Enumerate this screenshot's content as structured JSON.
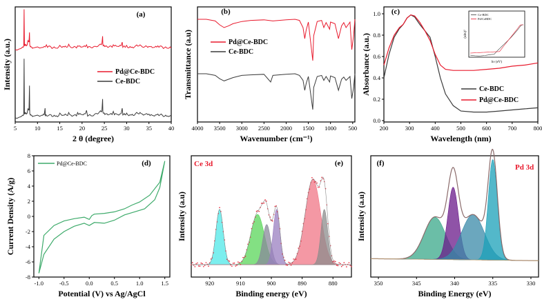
{
  "chart_data": [
    {
      "panel": "(a)",
      "type": "line",
      "xlabel": "2 θ (degree)",
      "ylabel": "Intensity (a.u.)",
      "xlim": [
        5,
        40
      ],
      "xticks": [
        "5",
        "10",
        "15",
        "20",
        "25",
        "30",
        "35",
        "40"
      ],
      "series": [
        {
          "name": "Pd@Ce-BDC",
          "color": "#e8192c",
          "x": [
            5,
            6.7,
            7.0,
            7.3,
            7.8,
            8.2,
            8.5,
            9,
            11,
            12,
            13,
            14,
            15,
            16,
            17,
            18,
            19,
            20,
            21,
            22,
            23,
            24,
            24.6,
            24.9,
            25.2,
            26,
            27,
            28,
            29,
            29.6,
            30,
            31,
            32,
            33,
            34,
            35,
            36,
            37,
            38,
            39,
            40
          ],
          "y": [
            0,
            0.5,
            7.5,
            0.8,
            1.5,
            3.2,
            0.6,
            0.3,
            0.4,
            0.9,
            0.5,
            0.3,
            0.8,
            0.5,
            1.0,
            0.4,
            0.7,
            0.5,
            0.9,
            0.4,
            0.6,
            1.0,
            2.5,
            0.8,
            0.6,
            0.5,
            0.9,
            0.6,
            1.4,
            0.5,
            0.8,
            0.4,
            0.7,
            0.9,
            0.5,
            0.6,
            0.4,
            0.7,
            0.5,
            0.3,
            0.3
          ]
        },
        {
          "name": "Ce-BDC",
          "color": "#3a3a3a",
          "x": [
            5,
            6.7,
            7.0,
            7.3,
            7.8,
            8.2,
            8.5,
            9,
            11,
            11.7,
            12,
            13,
            14,
            15,
            16,
            17,
            18,
            19,
            20,
            21,
            22,
            23,
            24,
            24.6,
            24.9,
            25.2,
            26,
            27,
            28,
            29,
            29.6,
            30,
            31,
            32,
            33,
            34,
            35,
            36,
            37,
            38,
            39,
            40
          ],
          "y": [
            0,
            0.5,
            11,
            0.8,
            1.5,
            6.0,
            0.6,
            0.3,
            0.5,
            1.8,
            0.4,
            0.6,
            0.3,
            0.9,
            0.5,
            1.0,
            0.4,
            1.0,
            0.6,
            1.4,
            0.4,
            0.8,
            1.2,
            3.5,
            0.9,
            0.7,
            0.6,
            1.2,
            0.6,
            1.8,
            0.6,
            0.9,
            0.5,
            0.8,
            1.0,
            0.6,
            0.7,
            0.4,
            0.7,
            0.5,
            0.3,
            0.3
          ]
        }
      ]
    },
    {
      "panel": "(b)",
      "type": "line",
      "xlabel": "Wavenumber (cm⁻¹)",
      "ylabel": "Transmittance (a.u)",
      "xlim": [
        4000,
        450
      ],
      "xticks": [
        "4000",
        "3500",
        "3000",
        "2500",
        "2000",
        "1500",
        "1000",
        "500"
      ],
      "series": [
        {
          "name": "Pd@Ce-BDC",
          "color": "#e8192c",
          "x": [
            4000,
            3800,
            3600,
            3500,
            3400,
            3300,
            3200,
            3000,
            2800,
            2500,
            2300,
            2000,
            1800,
            1700,
            1620,
            1580,
            1550,
            1500,
            1450,
            1400,
            1380,
            1300,
            1200,
            1150,
            1100,
            1020,
            1000,
            900,
            820,
            750,
            700,
            650,
            560,
            520,
            480,
            450
          ],
          "y": [
            0,
            0,
            -0.3,
            -1.0,
            -1.5,
            -1.2,
            -0.8,
            -0.4,
            -0.2,
            -0.1,
            -0.3,
            -0.1,
            0,
            -0.2,
            -1.5,
            -3.5,
            -2.0,
            -0.5,
            -4.0,
            -7.5,
            -3.0,
            -0.4,
            -0.2,
            -1.5,
            -0.6,
            -1.8,
            -0.5,
            -0.8,
            -3.5,
            -1.2,
            -0.6,
            -1.5,
            -0.5,
            -5.5,
            -3.0,
            0
          ]
        },
        {
          "name": "Ce-BDC",
          "color": "#3a3a3a",
          "x": [
            4000,
            3800,
            3600,
            3500,
            3400,
            3300,
            3200,
            3000,
            2800,
            2500,
            2350,
            2300,
            2000,
            1800,
            1700,
            1620,
            1580,
            1550,
            1500,
            1450,
            1400,
            1380,
            1300,
            1200,
            1150,
            1100,
            1020,
            1000,
            900,
            820,
            750,
            700,
            650,
            560,
            520,
            480,
            450
          ],
          "y": [
            0,
            0,
            -0.3,
            -0.9,
            -1.3,
            -1.0,
            -0.7,
            -0.3,
            -0.2,
            -0.1,
            -1.5,
            -0.3,
            -0.1,
            0,
            -0.3,
            -1.2,
            -3.0,
            -1.8,
            -0.5,
            -3.5,
            -6.5,
            -2.5,
            -0.5,
            -0.3,
            -1.2,
            -0.5,
            -1.5,
            -0.4,
            -0.7,
            -3.0,
            -1.0,
            -0.6,
            -1.2,
            -0.5,
            -4.5,
            -2.5,
            0
          ]
        }
      ]
    },
    {
      "panel": "(c)",
      "type": "line",
      "xlabel": "Wavelength (nm)",
      "ylabel": "Absorbance (a.u.)",
      "xlim": [
        200,
        800
      ],
      "ylim": [
        0,
        1.0
      ],
      "xticks": [
        "200",
        "300",
        "400",
        "500",
        "600",
        "700",
        "800"
      ],
      "yticks": [
        "0.0",
        "0.2",
        "0.4",
        "0.6",
        "0.8",
        "1.0"
      ],
      "series": [
        {
          "name": "Ce-BDC",
          "color": "#3a3a3a",
          "x": [
            200,
            220,
            240,
            260,
            275,
            290,
            305,
            320,
            340,
            360,
            380,
            400,
            420,
            440,
            470,
            500,
            550,
            600,
            650,
            700,
            750,
            800
          ],
          "y": [
            0.4,
            0.62,
            0.78,
            0.86,
            0.9,
            0.96,
            0.99,
            0.97,
            0.9,
            0.84,
            0.78,
            0.6,
            0.4,
            0.25,
            0.14,
            0.09,
            0.08,
            0.08,
            0.09,
            0.1,
            0.11,
            0.12
          ]
        },
        {
          "name": "Pd@Ce-BDC",
          "color": "#e8192c",
          "x": [
            200,
            220,
            240,
            260,
            275,
            290,
            305,
            320,
            340,
            360,
            380,
            400,
            420,
            440,
            470,
            500,
            550,
            600,
            650,
            700,
            750,
            800
          ],
          "y": [
            0.52,
            0.68,
            0.8,
            0.87,
            0.9,
            0.96,
            0.99,
            0.98,
            0.92,
            0.84,
            0.75,
            0.62,
            0.52,
            0.48,
            0.47,
            0.47,
            0.47,
            0.48,
            0.49,
            0.51,
            0.52,
            0.54
          ]
        }
      ],
      "inset": {
        "xlabel": "hν (eV)",
        "ylabel": "(αhν)²",
        "series": [
          {
            "name": "Ce-BDC",
            "color": "#3a3a3a"
          },
          {
            "name": "Pd/CeBDC",
            "color": "#e8192c"
          }
        ]
      }
    },
    {
      "panel": "(d)",
      "type": "line",
      "xlabel": "Potential (V) vs Ag/AgCl",
      "ylabel": "Current Density (A/g)",
      "xlim": [
        -1.1,
        1.6
      ],
      "ylim": [
        -8,
        8
      ],
      "xticks": [
        "-1.0",
        "-0.5",
        "0.0",
        "0.5",
        "1.0",
        "1.5"
      ],
      "yticks": [
        "-8",
        "-6",
        "-4",
        "-2",
        "0",
        "2",
        "4",
        "6",
        "8"
      ],
      "series": [
        {
          "name": "Pd@Ce-BDC",
          "color": "#3daa6a",
          "x": [
            -1.0,
            -0.9,
            -0.7,
            -0.5,
            -0.3,
            -0.1,
            0.0,
            0.1,
            0.3,
            0.5,
            0.7,
            0.9,
            1.1,
            1.3,
            1.4,
            1.5,
            1.5,
            1.4,
            1.2,
            1.0,
            0.85,
            0.7,
            0.5,
            0.3,
            0.1,
            0.05,
            0.0,
            -0.1,
            -0.3,
            -0.5,
            -0.7,
            -0.9,
            -1.0
          ],
          "y": [
            -7.5,
            -5.0,
            -3.0,
            -2.0,
            -1.3,
            -0.9,
            -1.2,
            -0.8,
            -0.9,
            -0.5,
            0.2,
            0.6,
            1.0,
            2.2,
            3.8,
            7.3,
            7.3,
            4.5,
            2.8,
            1.9,
            1.5,
            1.0,
            0.6,
            0.4,
            0.3,
            0.1,
            -0.4,
            -0.1,
            -0.3,
            -0.6,
            -1.2,
            -2.5,
            -7.5
          ]
        }
      ]
    },
    {
      "panel": "(e)",
      "type": "line",
      "tag": "Ce 3d",
      "xlabel": "Binding energy (eV)",
      "ylabel": "Intensity (a.u)",
      "xlim": [
        926,
        874
      ],
      "xticks": [
        "920",
        "910",
        "900",
        "890",
        "880"
      ],
      "peaks": [
        {
          "center": 916.8,
          "height": 0.55,
          "width": 1.2,
          "color": "#4fe8e8"
        },
        {
          "center": 904.5,
          "height": 0.5,
          "width": 2.2,
          "color": "#5ad65a"
        },
        {
          "center": 901.5,
          "height": 0.4,
          "width": 1.3,
          "color": "#888899"
        },
        {
          "center": 898.3,
          "height": 0.55,
          "width": 1.1,
          "color": "#9a7fc0"
        },
        {
          "center": 886.5,
          "height": 0.85,
          "width": 2.5,
          "color": "#f07585"
        },
        {
          "center": 882.8,
          "height": 0.55,
          "width": 1.1,
          "color": "#8c8c8c"
        }
      ]
    },
    {
      "panel": "(f)",
      "type": "line",
      "tag": "Pd 3d",
      "xlabel": "Binding Energy (eV)",
      "ylabel": "Intensity (a.u)",
      "xlim": [
        351,
        329
      ],
      "xticks": [
        "350",
        "345",
        "340",
        "335",
        "330"
      ],
      "peaks": [
        {
          "center": 342.6,
          "height": 0.42,
          "width": 1.4,
          "color": "#3aa88a"
        },
        {
          "center": 340.2,
          "height": 0.72,
          "width": 0.7,
          "color": "#6a1a8a"
        },
        {
          "center": 337.6,
          "height": 0.45,
          "width": 1.5,
          "color": "#3a8aa8"
        },
        {
          "center": 335.0,
          "height": 1.0,
          "width": 0.6,
          "color": "#1aa0b8"
        }
      ]
    }
  ]
}
